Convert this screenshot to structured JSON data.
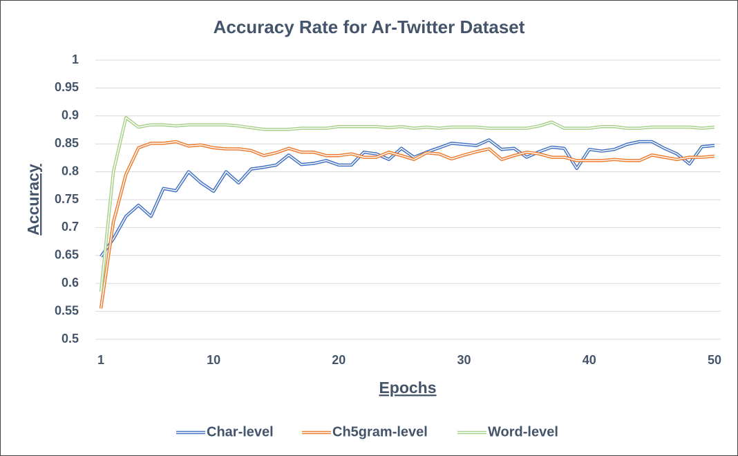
{
  "chart_data": {
    "type": "line",
    "title": "Accuracy Rate for Ar-Twitter Dataset",
    "x_label": "Epochs",
    "y_label": "Accuracy",
    "x": [
      1,
      2,
      3,
      4,
      5,
      6,
      7,
      8,
      9,
      10,
      11,
      12,
      13,
      14,
      15,
      16,
      17,
      18,
      19,
      20,
      21,
      22,
      23,
      24,
      25,
      26,
      27,
      28,
      29,
      30,
      31,
      32,
      33,
      34,
      35,
      36,
      37,
      38,
      39,
      40,
      41,
      42,
      43,
      44,
      45,
      46,
      47,
      48,
      49,
      50
    ],
    "xlim": [
      1,
      50
    ],
    "xticks": [
      1,
      10,
      20,
      30,
      40,
      50
    ],
    "ylim": [
      0.5,
      1
    ],
    "yticks": [
      0.5,
      0.55,
      0.6,
      0.65,
      0.7,
      0.75,
      0.8,
      0.85,
      0.9,
      0.95,
      1
    ],
    "grid": true,
    "legend": "bottom",
    "series": [
      {
        "name": "Char-level",
        "color": "#4472c4",
        "values": [
          0.648,
          0.68,
          0.72,
          0.74,
          0.72,
          0.77,
          0.766,
          0.8,
          0.78,
          0.765,
          0.8,
          0.78,
          0.805,
          0.808,
          0.812,
          0.83,
          0.813,
          0.815,
          0.82,
          0.812,
          0.812,
          0.835,
          0.832,
          0.822,
          0.842,
          0.826,
          0.835,
          0.843,
          0.851,
          0.849,
          0.847,
          0.857,
          0.84,
          0.842,
          0.826,
          0.836,
          0.844,
          0.842,
          0.806,
          0.84,
          0.837,
          0.84,
          0.849,
          0.854,
          0.854,
          0.842,
          0.832,
          0.814,
          0.845,
          0.847
        ]
      },
      {
        "name": "Ch5gram-level",
        "color": "#ed7d31",
        "values": [
          0.555,
          0.71,
          0.795,
          0.843,
          0.851,
          0.851,
          0.854,
          0.846,
          0.848,
          0.843,
          0.841,
          0.841,
          0.838,
          0.829,
          0.834,
          0.842,
          0.835,
          0.835,
          0.829,
          0.829,
          0.832,
          0.826,
          0.826,
          0.835,
          0.829,
          0.822,
          0.834,
          0.832,
          0.823,
          0.83,
          0.836,
          0.841,
          0.822,
          0.829,
          0.835,
          0.832,
          0.826,
          0.826,
          0.82,
          0.82,
          0.82,
          0.822,
          0.82,
          0.82,
          0.83,
          0.826,
          0.822,
          0.826,
          0.826,
          0.828
        ]
      },
      {
        "name": "Word-level",
        "color": "#a9d18e",
        "values": [
          0.585,
          0.8,
          0.897,
          0.88,
          0.884,
          0.884,
          0.882,
          0.884,
          0.884,
          0.884,
          0.884,
          0.882,
          0.879,
          0.876,
          0.876,
          0.876,
          0.878,
          0.878,
          0.878,
          0.881,
          0.881,
          0.881,
          0.881,
          0.879,
          0.881,
          0.878,
          0.88,
          0.878,
          0.88,
          0.88,
          0.88,
          0.878,
          0.878,
          0.878,
          0.878,
          0.882,
          0.889,
          0.878,
          0.878,
          0.878,
          0.881,
          0.881,
          0.878,
          0.878,
          0.88,
          0.88,
          0.88,
          0.88,
          0.878,
          0.88
        ]
      }
    ]
  }
}
